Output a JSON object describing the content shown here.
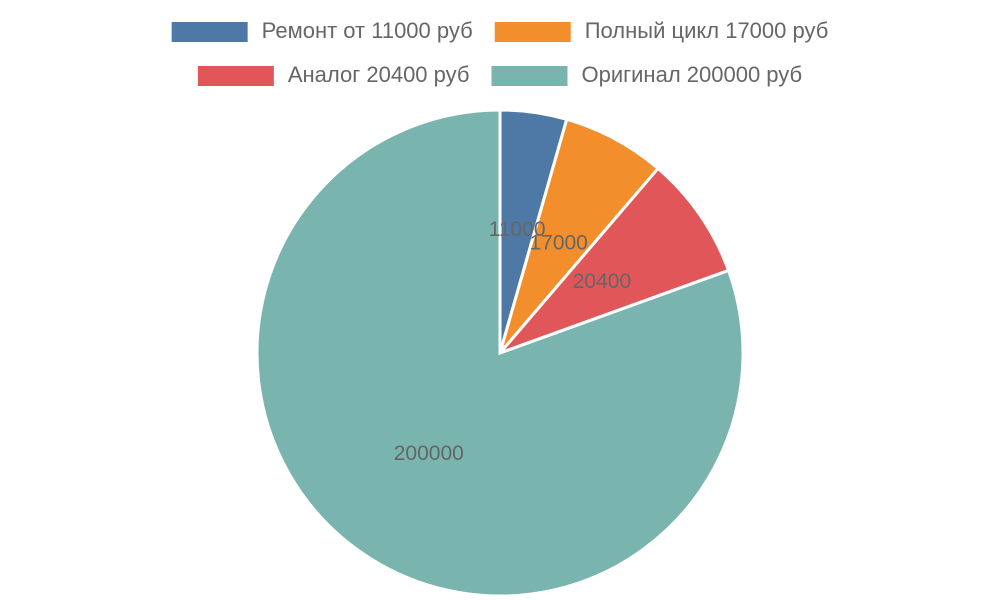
{
  "chart_data": {
    "type": "pie",
    "categories": [
      "Ремонт от 11000 руб",
      "Полный цикл 17000 руб",
      "Аналог 20400 руб",
      "Оригинал 200000 руб"
    ],
    "values": [
      11000,
      17000,
      20400,
      200000
    ],
    "colors": [
      "#4e79a7",
      "#f28e2c",
      "#e15759",
      "#79b5ae"
    ],
    "legend": "top"
  }
}
